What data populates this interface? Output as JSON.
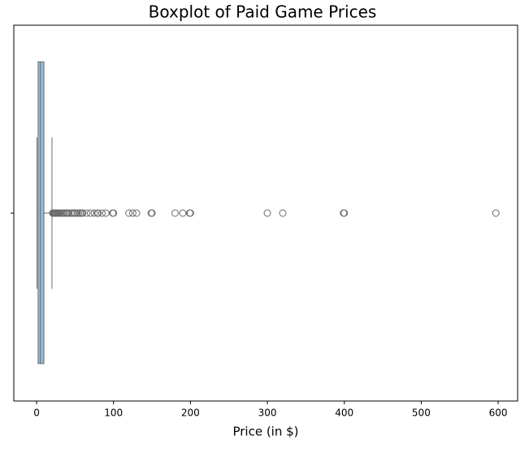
{
  "chart_data": {
    "type": "box",
    "orientation": "horizontal",
    "title": "Boxplot of Paid Game Prices",
    "xlabel": "Price (in $)",
    "categories": [
      null
    ],
    "stats": {
      "whislo": 0.5,
      "q1": 2,
      "med": 5,
      "q3": 9.5,
      "whishi": 20
    },
    "fliers": [
      21,
      22,
      23,
      24,
      25,
      26,
      27,
      28,
      29,
      30,
      32,
      34,
      35,
      37,
      39,
      40,
      42,
      45,
      47,
      49,
      50,
      53,
      55,
      57,
      59,
      60,
      65,
      70,
      75,
      79,
      80,
      85,
      90,
      99,
      100,
      120,
      125,
      130,
      149,
      150,
      180,
      190,
      199,
      200,
      300,
      320,
      399,
      400,
      597
    ],
    "box_color": "#8fc1d9",
    "line_color": "#6b6b6b",
    "xlim": [
      -29.6,
      625.3
    ],
    "xticks": [
      0,
      100,
      200,
      300,
      400,
      500,
      600
    ]
  }
}
